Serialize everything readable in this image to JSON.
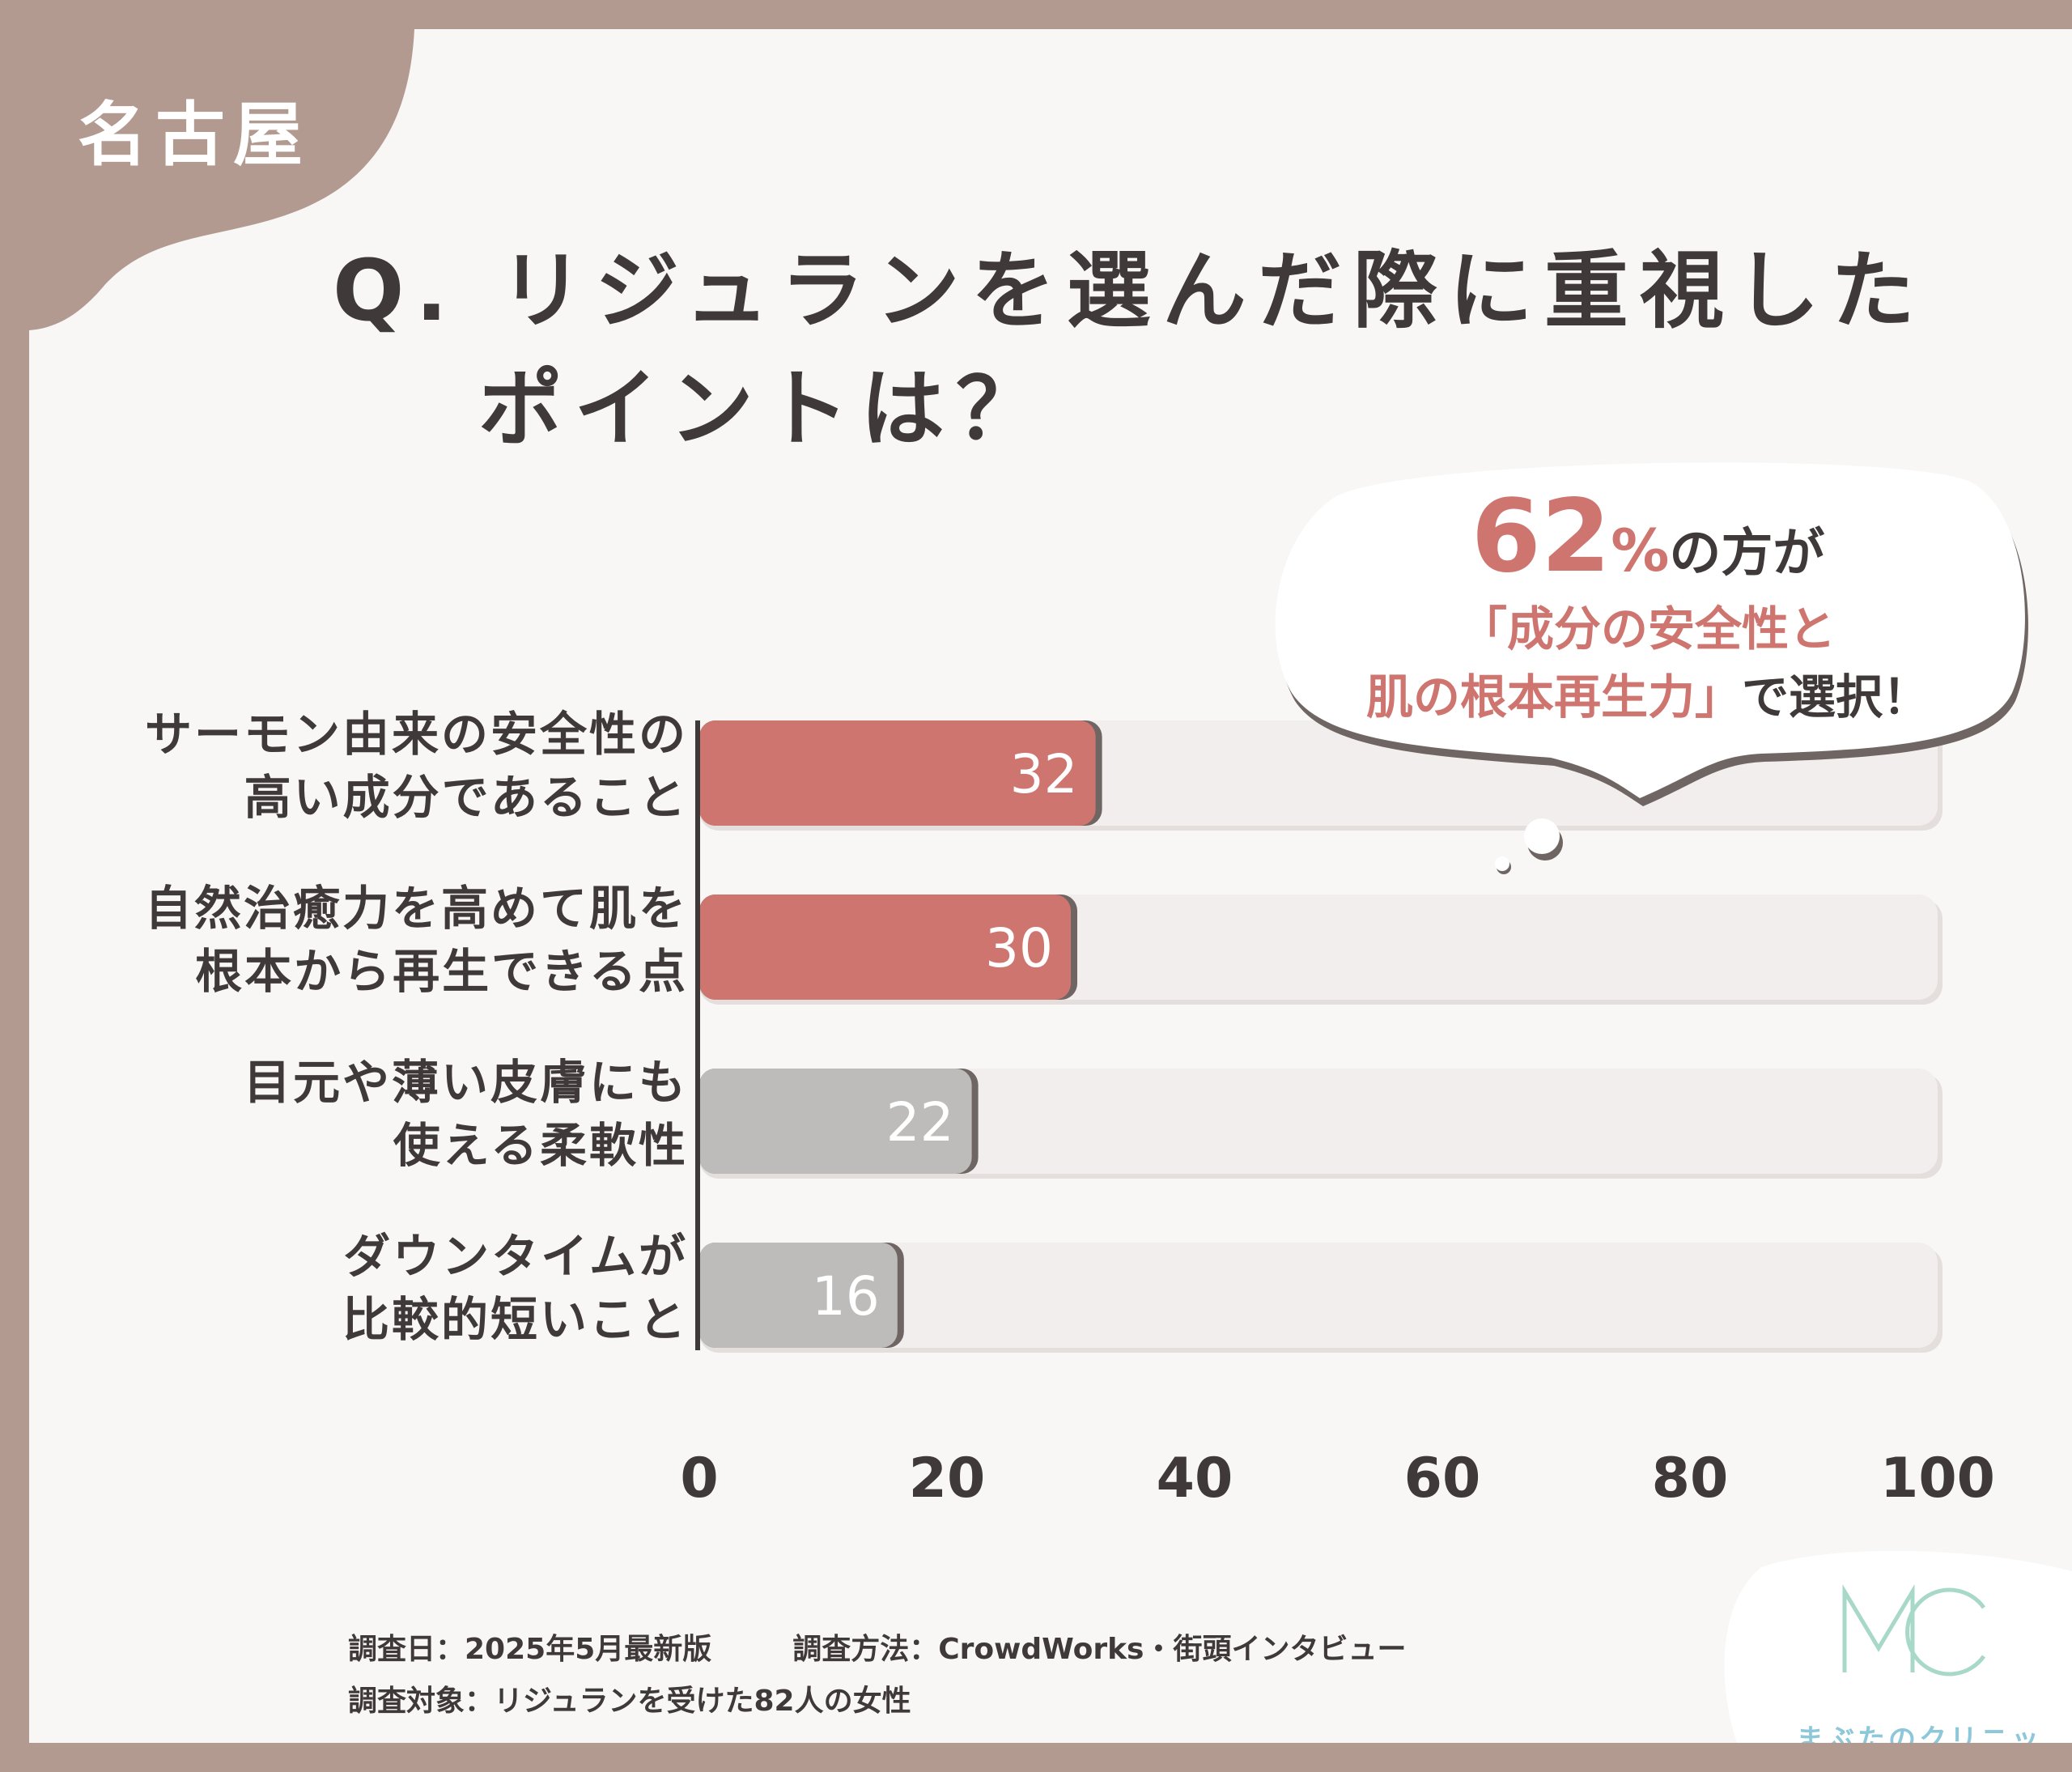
{
  "header": {
    "location": "名古屋",
    "question_line1": "Q. リジュランを選んだ際に重視した",
    "question_line2": "ポイントは？"
  },
  "callout": {
    "percent": "62",
    "percent_suffix": "%",
    "line1_rest": "の方が",
    "line2": "「成分の安全性と",
    "line3_accent": "肌の根本再生力」",
    "line3_rest": "で選択！"
  },
  "chart_data": {
    "type": "bar",
    "orientation": "horizontal",
    "categories": [
      [
        "サーモン由来の安全性の",
        "高い成分であること"
      ],
      [
        "自然治癒力を高めて肌を",
        "根本から再生できる点"
      ],
      [
        "目元や薄い皮膚にも",
        "使える柔軟性"
      ],
      [
        "ダウンタイムが",
        "比較的短いこと"
      ]
    ],
    "values": [
      32,
      30,
      22,
      16
    ],
    "value_labels": [
      "32",
      "30",
      "22",
      "16"
    ],
    "xlim": [
      0,
      100
    ],
    "x_ticks": [
      "0",
      "20",
      "40",
      "60",
      "80",
      "100"
    ],
    "colors": [
      "#cf7570",
      "#cf7570",
      "#bebcbb",
      "#bebcbb"
    ],
    "track_color": "#f1eeed",
    "grid": false
  },
  "footer": {
    "survey_date": "調査日：2025年5月最新版",
    "survey_method": "調査方法：CrowdWorks・街頭インタビュー",
    "survey_target": "調査対象：リジュランを受けた82人の女性"
  },
  "brand": {
    "logo_mark": "MC",
    "name": "まぶたのクリニック",
    "color": "#8cc7da"
  },
  "colors": {
    "frame": "#b39a90",
    "accent": "#cf7570",
    "text": "#3f3a39"
  }
}
